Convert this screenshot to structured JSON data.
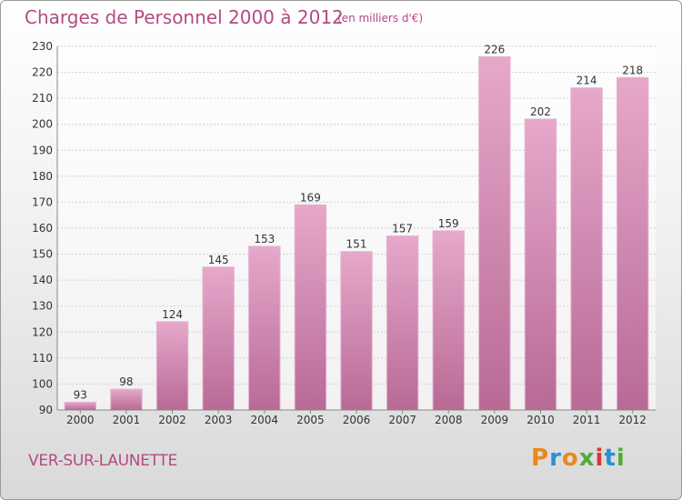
{
  "chart_data": {
    "type": "bar",
    "title": "Charges de Personnel 2000 à 2012",
    "subtitle": "(en milliers d'€)",
    "categories": [
      "2000",
      "2001",
      "2002",
      "2003",
      "2004",
      "2005",
      "2006",
      "2007",
      "2008",
      "2009",
      "2010",
      "2011",
      "2012"
    ],
    "values": [
      93,
      98,
      124,
      145,
      153,
      169,
      151,
      157,
      159,
      226,
      202,
      214,
      218
    ],
    "ylim": [
      90,
      230
    ],
    "yticks": [
      90,
      100,
      110,
      120,
      130,
      140,
      150,
      160,
      170,
      180,
      190,
      200,
      210,
      220,
      230
    ],
    "grid": true,
    "bar_color": "#c9709f",
    "bar_color_light": "#e6a8cb",
    "title_color": "#b44a82"
  },
  "commune": "VER-SUR-LAUNETTE",
  "brand": {
    "letters": [
      "P",
      "r",
      "o",
      "x",
      "i",
      "t",
      "i"
    ]
  }
}
